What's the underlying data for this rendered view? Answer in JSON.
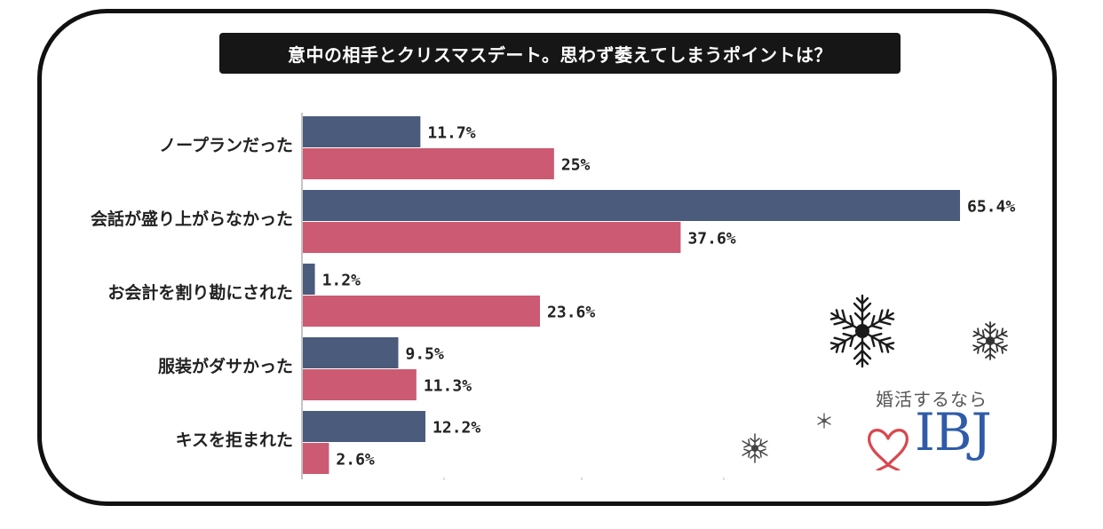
{
  "title": "意中の相手とクリスマスデート。思わず萎えてしまうポイントは？",
  "brand": {
    "tagline": "婚活するなら",
    "logo": "IBJ"
  },
  "colors": {
    "series_a": "#4b5b7b",
    "series_b": "#cc5a72",
    "title_bg": "#161616",
    "frame": "#111111",
    "logo_blue": "#2f5ba8",
    "logo_red": "#d9474f"
  },
  "chart_data": {
    "type": "bar",
    "orientation": "horizontal",
    "categories": [
      "ノープランだった",
      "会話が盛り上がらなかった",
      "お会計を割り勘にされた",
      "服装がダサかった",
      "キスを拒まれた"
    ],
    "series": [
      {
        "values": [
          11.7,
          65.4,
          1.2,
          9.5,
          12.2
        ],
        "labels": [
          "11.7%",
          "65.4%",
          "1.2%",
          "9.5%",
          "12.2%"
        ]
      },
      {
        "values": [
          25,
          37.6,
          23.6,
          11.3,
          2.6
        ],
        "labels": [
          "25%",
          "37.6%",
          "23.6%",
          "11.3%",
          "2.6%"
        ]
      }
    ],
    "xlim": [
      0,
      65.4
    ],
    "grid": false,
    "legend": "none"
  }
}
